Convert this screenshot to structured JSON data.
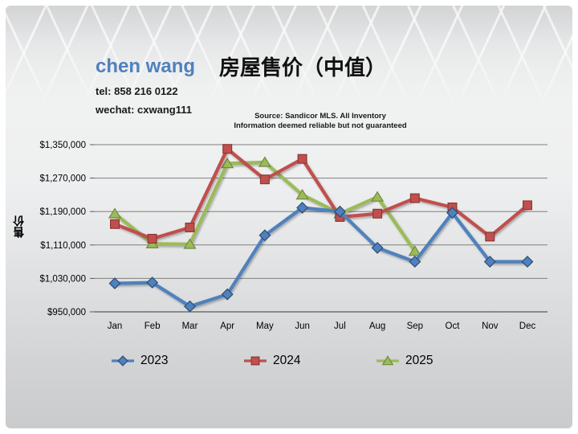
{
  "header": {
    "agent_name": "chen wang",
    "agent_name_color": "#4f81bd",
    "tel": "tel: 858 216 0122",
    "wechat": "wechat: cxwang111",
    "title": "房屋售价（中值）",
    "source_line1": "Source: Sandicor MLS. All Inventory",
    "source_line2": "Information deemed reliable but not guaranteed"
  },
  "chart_data": {
    "type": "line",
    "title": "房屋售价（中值）",
    "ylabel": "售价",
    "xlabel": "",
    "categories": [
      "Jan",
      "Feb",
      "Mar",
      "Apr",
      "May",
      "Jun",
      "Jul",
      "Aug",
      "Sep",
      "Oct",
      "Nov",
      "Dec"
    ],
    "ylim": [
      950000,
      1350000
    ],
    "y_ticks": [
      950000,
      1030000,
      1110000,
      1190000,
      1270000,
      1350000
    ],
    "y_tick_labels": [
      "$950,000",
      "$1,030,000",
      "$1,110,000",
      "$1,190,000",
      "$1,270,000",
      "$1,350,000"
    ],
    "grid": true,
    "legend_position": "bottom",
    "colors": {
      "grid": "#7f7f7f",
      "axis": "#595959"
    },
    "series": [
      {
        "name": "2023",
        "marker": "diamond",
        "color": "#4f81bd",
        "border": "#2c4d75",
        "values": [
          1018000,
          1020000,
          963000,
          992000,
          1133000,
          1199000,
          1190000,
          1103000,
          1070000,
          1187000,
          1070000,
          1070000
        ]
      },
      {
        "name": "2024",
        "marker": "square",
        "color": "#c0504d",
        "border": "#8c3836",
        "values": [
          1160000,
          1125000,
          1152000,
          1340000,
          1267000,
          1316000,
          1177000,
          1185000,
          1222000,
          1200000,
          1130000,
          1205000
        ]
      },
      {
        "name": "2025",
        "marker": "triangle",
        "color": "#9bbb59",
        "border": "#71893f",
        "values": [
          1185000,
          1113000,
          1112000,
          1305000,
          1308000,
          1230000,
          1185000,
          1225000,
          1095000,
          null,
          null,
          null
        ]
      }
    ]
  }
}
